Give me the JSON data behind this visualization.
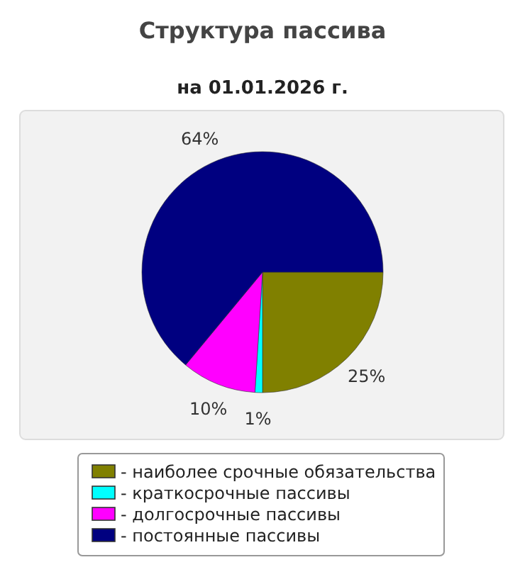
{
  "chart_data": {
    "type": "pie",
    "title": "Структура пассива",
    "subtitle": "на 01.01.2026 г.",
    "categories": [
      "- наиболее срочные обязательства",
      "- краткосрочные пассивы",
      "- долгосрочные пассивы",
      "- постоянные пассивы"
    ],
    "values": [
      25,
      1,
      10,
      64
    ],
    "value_labels": [
      "25%",
      "1%",
      "10%",
      "64%"
    ],
    "colors": [
      "#808000",
      "#00ffff",
      "#ff00ff",
      "#000080"
    ],
    "legend": "bottom"
  }
}
